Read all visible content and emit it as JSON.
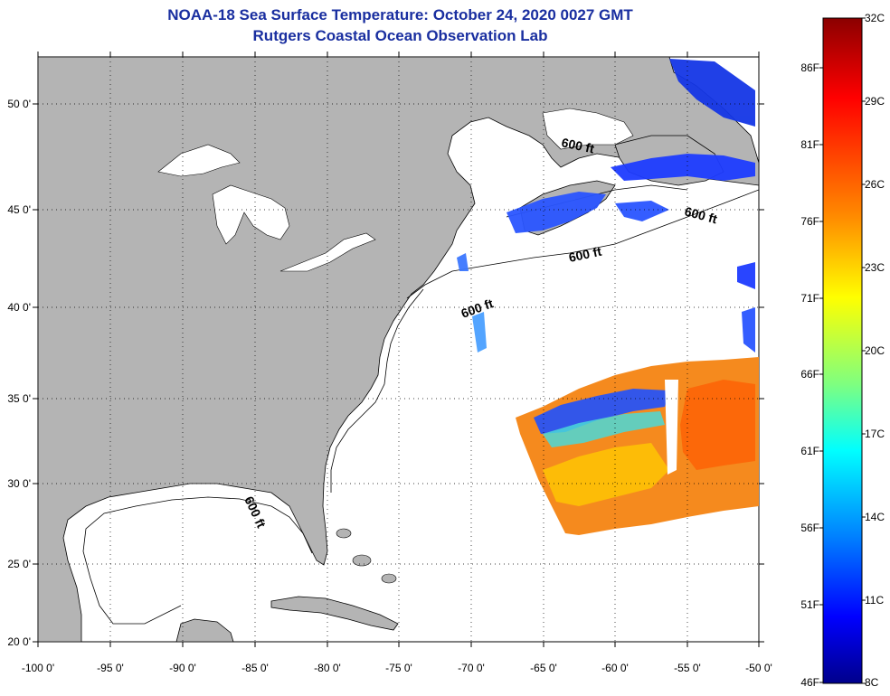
{
  "title_line1": "NOAA-18 Sea Surface Temperature:  October 24, 2020 0027 GMT",
  "title_line2": "Rutgers Coastal Ocean Observation Lab",
  "lat_labels": [
    "50 0'",
    "45 0'",
    "40 0'",
    "35 0'",
    "30 0'",
    "25 0'",
    "20 0'"
  ],
  "lon_labels": [
    "-100 0'",
    "-95 0'",
    "-90 0'",
    "-85 0'",
    "-80 0'",
    "-75 0'",
    "-70 0'",
    "-65 0'",
    "-60 0'",
    "-55 0'",
    "-50 0'"
  ],
  "isobath_labels": [
    "600 ft",
    "600 ft",
    "600 ft",
    "600 ft",
    "600 ft"
  ],
  "colorbar": {
    "fahrenheit_labels": [
      "86F",
      "81F",
      "76F",
      "71F",
      "66F",
      "61F",
      "56F",
      "51F",
      "46F"
    ],
    "celsius_labels": [
      "32C",
      "29C",
      "26C",
      "23C",
      "20C",
      "17C",
      "14C",
      "11C",
      "8C"
    ],
    "colors": [
      "#8b0000",
      "#ff0000",
      "#ff8c00",
      "#ffff00",
      "#7fff7f",
      "#00ffff",
      "#0080ff",
      "#0000ff",
      "#00008b"
    ]
  },
  "colors": {
    "land": "#b4b4b4",
    "water": "#ffffff",
    "title": "#1a2fa0",
    "sst_warm": "#f58a1e",
    "sst_cool": "#1e3cff"
  }
}
